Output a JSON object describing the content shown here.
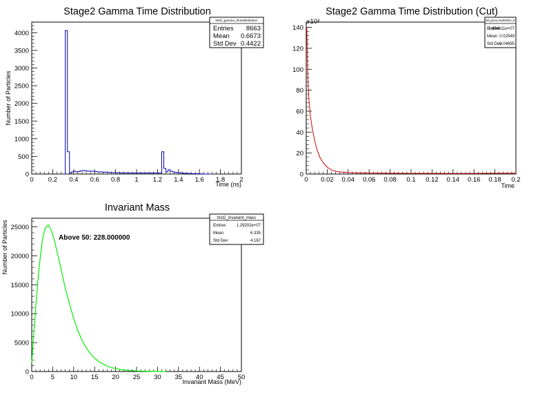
{
  "charts": [
    {
      "title": "Stage2 Gamma Time Distribution",
      "xlabel": "Time (ns)",
      "ylabel": "Number of Particles",
      "ylabel_prefix": "",
      "stats": {
        "name": "hist2_gamma_timedistribution",
        "rows": [
          {
            "label": "Entries",
            "value": "8663"
          },
          {
            "label": "Mean",
            "value": "0.6673"
          },
          {
            "label": "Std Dev",
            "value": "0.4422"
          }
        ]
      },
      "annotation": ""
    },
    {
      "title": "Stage2 Gamma Time Distribution (Cut)",
      "xlabel": "Time",
      "ylabel": "",
      "ylabel_prefix": "×10³",
      "stats": {
        "name": "hist2_gamma_timedistribution_cut",
        "rows": [
          {
            "label": "Entries",
            "value": "1.484611e+07"
          },
          {
            "label": "Mean",
            "value": "0.02549"
          },
          {
            "label": "Std Dev",
            "value": "0.04695"
          }
        ]
      },
      "annotation": ""
    },
    {
      "title": "Invariant Mass",
      "xlabel": "Invariant Mass (MeV)",
      "ylabel": "Number of Particles",
      "ylabel_prefix": "",
      "stats": {
        "name": "hist2_invariant_mass",
        "rows": [
          {
            "label": "Entries",
            "value": "1.29202e+07"
          },
          {
            "label": "Mean",
            "value": "6.335"
          },
          {
            "label": "Std Dev",
            "value": "4.167"
          }
        ]
      },
      "annotation": "Above 50: 228.000000"
    }
  ],
  "chart_data": [
    {
      "type": "histogram",
      "title": "Stage2 Gamma Time Distribution",
      "xlabel": "Time (ns)",
      "ylabel": "Number of Particles",
      "xlim": [
        0,
        2
      ],
      "ylim": [
        0,
        4300
      ],
      "xticks": [
        "0",
        "0.2",
        "0.4",
        "0.6",
        "0.8",
        "1",
        "1.2",
        "1.4",
        "1.6",
        "1.8",
        "2"
      ],
      "yticks": [
        "0",
        "500",
        "1000",
        "1500",
        "2000",
        "2500",
        "3000",
        "3500",
        "4000"
      ],
      "color": "#0000aa",
      "bins": {
        "x_start": 0.3,
        "bin_width": 0.02,
        "values": [
          0,
          4060,
          630,
          30,
          60,
          80,
          60,
          70,
          90,
          95,
          90,
          85,
          80,
          80,
          75,
          70,
          60,
          60,
          55,
          50,
          55,
          50,
          45,
          40,
          45,
          35,
          40,
          30,
          35,
          30,
          30,
          30,
          30,
          30,
          30,
          30,
          30,
          30,
          30,
          30,
          30,
          30,
          30,
          30,
          30,
          30,
          30,
          630,
          160,
          60,
          120,
          80,
          60,
          50,
          40,
          40,
          30,
          20,
          20,
          15,
          15,
          10,
          10,
          10,
          10,
          5,
          5,
          0
        ]
      }
    },
    {
      "type": "histogram",
      "title": "Stage2 Gamma Time Distribution (Cut)",
      "xlabel": "Time",
      "ylabel": "",
      "y_multiplier_label": "×10³",
      "xlim": [
        0,
        0.2
      ],
      "ylim": [
        0,
        145
      ],
      "xticks": [
        "0",
        "0.02",
        "0.04",
        "0.06",
        "0.08",
        "0.1",
        "0.12",
        "0.14",
        "0.16",
        "0.18",
        "0.2"
      ],
      "yticks": [
        "0",
        "20",
        "40",
        "60",
        "80",
        "100",
        "120",
        "140"
      ],
      "color": "#cc0000",
      "curve": {
        "x": [
          0.0005,
          0.0015,
          0.0025,
          0.004,
          0.006,
          0.008,
          0.01,
          0.013,
          0.016,
          0.02,
          0.025,
          0.03,
          0.04,
          0.05,
          0.07,
          0.1,
          0.15,
          0.2
        ],
        "y": [
          140,
          95,
          72,
          55,
          42,
          32,
          24,
          16,
          11,
          6.5,
          3.5,
          2.2,
          1.4,
          1.1,
          0.8,
          0.6,
          0.5,
          0.8
        ]
      }
    },
    {
      "type": "histogram",
      "title": "Invariant Mass",
      "xlabel": "Invariant Mass (MeV)",
      "ylabel": "Number of Particles",
      "xlim": [
        0,
        50
      ],
      "ylim": [
        0,
        26500
      ],
      "xticks": [
        "0",
        "5",
        "10",
        "15",
        "20",
        "25",
        "30",
        "35",
        "40",
        "45",
        "50"
      ],
      "yticks": [
        "0",
        "5000",
        "10000",
        "15000",
        "20000",
        "25000"
      ],
      "color": "#00ee00",
      "annotation": "Above 50: 228.000000",
      "curve": {
        "x": [
          0.0,
          0.5,
          1.0,
          1.5,
          2.0,
          2.5,
          3.0,
          3.5,
          4.0,
          4.5,
          5.0,
          5.5,
          6.0,
          7.0,
          8.0,
          9.0,
          10.0,
          11.0,
          12.0,
          13.0,
          14.0,
          15.0,
          16.0,
          18.0,
          20.0,
          22.0,
          25.0,
          28.0,
          32.0
        ],
        "y": [
          1500,
          6500,
          11500,
          16000,
          19500,
          22500,
          24300,
          25100,
          25300,
          24700,
          23700,
          22400,
          20800,
          17700,
          14400,
          11700,
          9200,
          7100,
          5400,
          4100,
          3100,
          2300,
          1700,
          900,
          500,
          250,
          90,
          30,
          0
        ]
      }
    }
  ]
}
